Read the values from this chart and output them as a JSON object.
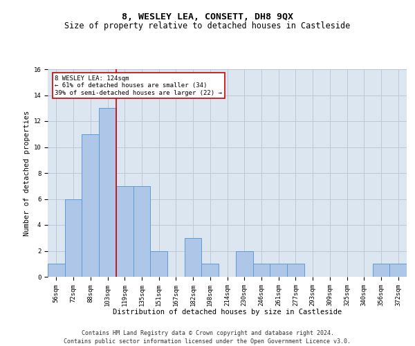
{
  "title": "8, WESLEY LEA, CONSETT, DH8 9QX",
  "subtitle": "Size of property relative to detached houses in Castleside",
  "xlabel": "Distribution of detached houses by size in Castleside",
  "ylabel": "Number of detached properties",
  "categories": [
    "56sqm",
    "72sqm",
    "88sqm",
    "103sqm",
    "119sqm",
    "135sqm",
    "151sqm",
    "167sqm",
    "182sqm",
    "198sqm",
    "214sqm",
    "230sqm",
    "246sqm",
    "261sqm",
    "277sqm",
    "293sqm",
    "309sqm",
    "325sqm",
    "340sqm",
    "356sqm",
    "372sqm"
  ],
  "values": [
    1,
    6,
    11,
    13,
    7,
    7,
    2,
    0,
    3,
    1,
    0,
    2,
    1,
    1,
    1,
    0,
    0,
    0,
    0,
    1,
    1
  ],
  "bar_color": "#aec6e8",
  "bar_edge_color": "#5b9bd5",
  "annotation_line1": "8 WESLEY LEA: 124sqm",
  "annotation_line2": "← 61% of detached houses are smaller (34)",
  "annotation_line3": "39% of semi-detached houses are larger (22) →",
  "annotation_box_color": "#ffffff",
  "annotation_box_edge_color": "#cc0000",
  "vline_color": "#cc0000",
  "ylim": [
    0,
    16
  ],
  "yticks": [
    0,
    2,
    4,
    6,
    8,
    10,
    12,
    14,
    16
  ],
  "grid_color": "#c0c8d8",
  "bg_color": "#dce6f0",
  "footer": "Contains HM Land Registry data © Crown copyright and database right 2024.\nContains public sector information licensed under the Open Government Licence v3.0.",
  "title_fontsize": 9.5,
  "subtitle_fontsize": 8.5,
  "xlabel_fontsize": 7.5,
  "ylabel_fontsize": 7.5,
  "tick_fontsize": 6.5,
  "footer_fontsize": 6,
  "annotation_fontsize": 6.5
}
